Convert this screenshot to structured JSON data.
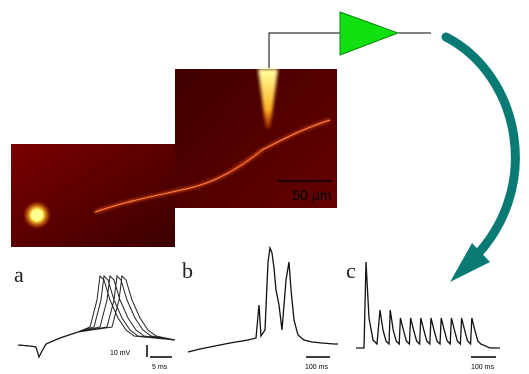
{
  "micrograph": {
    "scale_bar_label": "50 µm",
    "colors": {
      "background": "#6a0000",
      "neuron": "#ff5a1a",
      "hotspot": "#ffff80"
    }
  },
  "amplifier": {
    "color": "#10e010",
    "outline": "#0a8a0a"
  },
  "arrow": {
    "color": "#0a7a74"
  },
  "panels": [
    {
      "label": "a",
      "scale_voltage": "10 mV",
      "scale_time": "5 ms"
    },
    {
      "label": "b",
      "scale_time": "100 ms"
    },
    {
      "label": "c",
      "scale_time": "100 ms"
    }
  ]
}
